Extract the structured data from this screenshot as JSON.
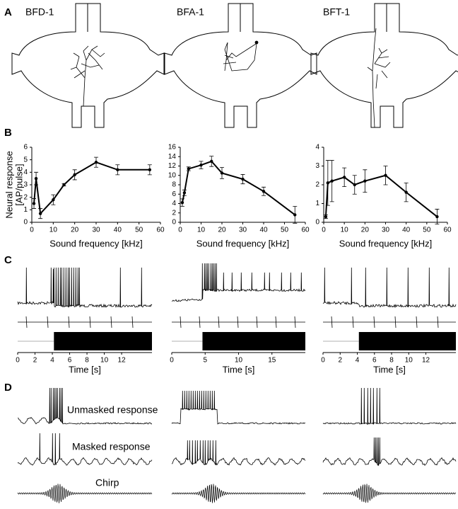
{
  "panels": [
    "A",
    "B",
    "C",
    "D"
  ],
  "cells": [
    "BFD-1",
    "BFA-1",
    "BFT-1"
  ],
  "d_labels": [
    "Unmasked response",
    "Masked response",
    "Chirp"
  ],
  "chart_data": [
    {
      "type": "line",
      "ylabel": [
        "Neural response",
        "[AP/pulse]"
      ],
      "xlabel": "Sound frequency [kHz]",
      "x": [
        1,
        2,
        4,
        10,
        15,
        20,
        30,
        40,
        55
      ],
      "values": [
        1.5,
        3.5,
        0.7,
        1.8,
        3.0,
        3.8,
        4.8,
        4.2,
        4.2
      ],
      "errors": [
        0.4,
        0.5,
        0.4,
        0.4,
        0.1,
        0.4,
        0.4,
        0.4,
        0.4
      ],
      "color": "#000000",
      "xlim": [
        0,
        60
      ],
      "xticks": [
        0,
        10,
        20,
        30,
        40,
        50,
        60
      ],
      "ylim": [
        0,
        6
      ],
      "yticks": [
        0,
        1,
        2,
        3,
        4,
        5,
        6
      ]
    },
    {
      "type": "line",
      "xlabel": "Sound frequency [kHz]",
      "x": [
        1,
        2,
        4,
        10,
        15,
        20,
        30,
        40,
        55
      ],
      "values": [
        4.2,
        6.3,
        11.4,
        12.2,
        13.0,
        10.5,
        9.2,
        6.6,
        1.6
      ],
      "errors": [
        0.8,
        0.6,
        0.4,
        0.8,
        1.1,
        1.2,
        1.0,
        0.9,
        1.8
      ],
      "color": "#000000",
      "xlim": [
        0,
        60
      ],
      "xticks": [
        0,
        10,
        20,
        30,
        40,
        50,
        60
      ],
      "ylim": [
        0,
        16
      ],
      "yticks": [
        0,
        2,
        4,
        6,
        8,
        10,
        12,
        14,
        16
      ]
    },
    {
      "type": "line",
      "xlabel": "Sound frequency [kHz]",
      "x": [
        1,
        2,
        4,
        10,
        15,
        20,
        30,
        40,
        55
      ],
      "values": [
        0.3,
        2.1,
        2.2,
        2.4,
        2.0,
        2.2,
        2.5,
        1.6,
        0.3
      ],
      "errors": [
        0.1,
        1.2,
        1.1,
        0.5,
        0.5,
        0.6,
        0.5,
        0.5,
        0.4
      ],
      "color": "#000000",
      "xlim": [
        0,
        60
      ],
      "xticks": [
        0,
        10,
        20,
        30,
        40,
        50,
        60
      ],
      "ylim": [
        0,
        4
      ],
      "yticks": [
        0,
        1,
        2,
        3,
        4
      ]
    },
    {
      "type": "trace",
      "xlabel": "Time [s]",
      "xlim": [
        0,
        15.5
      ],
      "xticks": [
        0,
        2,
        4,
        6,
        8,
        10,
        12
      ]
    },
    {
      "type": "trace",
      "xlabel": "Time [s]",
      "xlim": [
        0,
        20
      ],
      "xticks": [
        0,
        5,
        10,
        15
      ]
    },
    {
      "type": "trace",
      "xlabel": "Time [s]",
      "xlim": [
        0,
        15.5
      ],
      "xticks": [
        0,
        2,
        4,
        6,
        8,
        10,
        12
      ]
    }
  ]
}
